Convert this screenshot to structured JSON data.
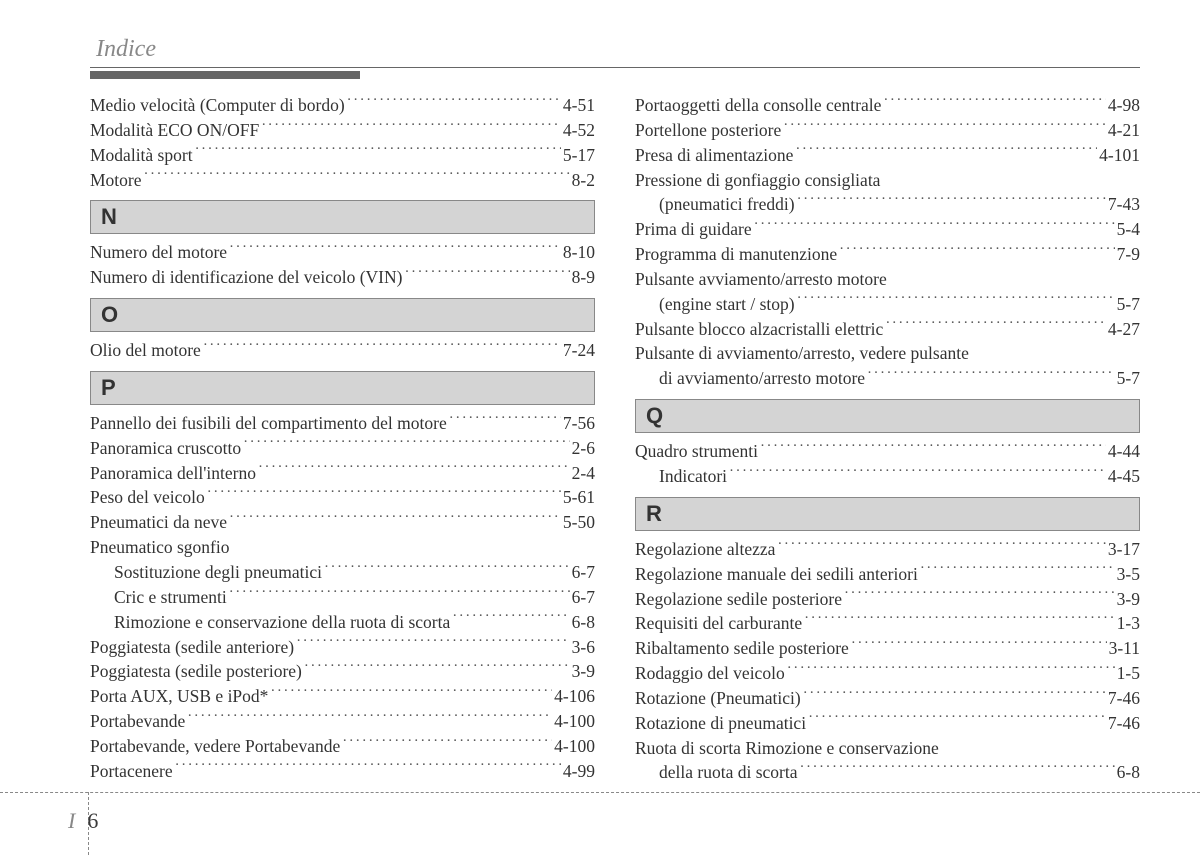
{
  "header": {
    "title": "Indice"
  },
  "footer": {
    "chapter": "I",
    "page": "6"
  },
  "columns": [
    {
      "items": [
        {
          "type": "entry",
          "label": "Medio velocità  (Computer di bordo)",
          "page": "4-51"
        },
        {
          "type": "entry",
          "label": "Modalità ECO ON/OFF",
          "page": "4-52"
        },
        {
          "type": "entry",
          "label": "Modalità sport",
          "page": "5-17"
        },
        {
          "type": "entry",
          "label": "Motore",
          "page": "8-2"
        },
        {
          "type": "letter",
          "letter": "N"
        },
        {
          "type": "entry",
          "label": "Numero del motore",
          "page": "8-10"
        },
        {
          "type": "entry",
          "label": "Numero di identificazione del veicolo (VIN)",
          "page": "8-9"
        },
        {
          "type": "letter",
          "letter": "O"
        },
        {
          "type": "entry",
          "label": "Olio del motore",
          "page": "7-24"
        },
        {
          "type": "letter",
          "letter": "P"
        },
        {
          "type": "entry",
          "label": "Pannello dei fusibili del compartimento del motore",
          "page": "7-56"
        },
        {
          "type": "entry",
          "label": "Panoramica cruscotto",
          "page": "2-6"
        },
        {
          "type": "entry",
          "label": "Panoramica dell'interno",
          "page": "2-4"
        },
        {
          "type": "entry",
          "label": "Peso del veicolo",
          "page": "5-61"
        },
        {
          "type": "entry",
          "label": "Pneumatici da neve",
          "page": "5-50"
        },
        {
          "type": "entry",
          "label": "Pneumatico sgonfio",
          "page": "",
          "noleader": true
        },
        {
          "type": "entry",
          "label": "Sostituzione degli pneumatici",
          "page": "6-7",
          "indent": true
        },
        {
          "type": "entry",
          "label": "Cric e strumenti",
          "page": "6-7",
          "indent": true
        },
        {
          "type": "entry",
          "label": "Rimozione e conservazione della ruota di scorta",
          "page": "6-8",
          "indent": true
        },
        {
          "type": "entry",
          "label": "Poggiatesta (sedile anteriore)",
          "page": "3-6"
        },
        {
          "type": "entry",
          "label": "Poggiatesta (sedile posteriore)",
          "page": "3-9"
        },
        {
          "type": "entry",
          "label": "Porta AUX, USB e iPod*",
          "page": "4-106"
        },
        {
          "type": "entry",
          "label": "Portabevande",
          "page": "4-100"
        },
        {
          "type": "entry",
          "label": "Portabevande, vedere Portabevande",
          "page": "4-100"
        },
        {
          "type": "entry",
          "label": "Portacenere",
          "page": "4-99"
        }
      ]
    },
    {
      "items": [
        {
          "type": "entry",
          "label": "Portaoggetti della consolle centrale",
          "page": "4-98"
        },
        {
          "type": "entry",
          "label": "Portellone posteriore",
          "page": "4-21"
        },
        {
          "type": "entry",
          "label": "Presa di alimentazione",
          "page": "4-101"
        },
        {
          "type": "entry",
          "label": "Pressione di gonfiaggio consigliata",
          "page": "",
          "noleader": true
        },
        {
          "type": "entry",
          "label": "(pneumatici freddi)",
          "page": "7-43",
          "indent": true
        },
        {
          "type": "entry",
          "label": "Prima di guidare",
          "page": "5-4"
        },
        {
          "type": "entry",
          "label": "Programma di manutenzione",
          "page": "7-9"
        },
        {
          "type": "entry",
          "label": "Pulsante avviamento/arresto motore",
          "page": "",
          "noleader": true
        },
        {
          "type": "entry",
          "label": "(engine start / stop)",
          "page": "5-7",
          "indent": true
        },
        {
          "type": "entry",
          "label": "Pulsante blocco alzacristalli elettric",
          "page": "4-27"
        },
        {
          "type": "entry",
          "label": "Pulsante di avviamento/arresto, vedere pulsante",
          "page": "",
          "noleader": true
        },
        {
          "type": "entry",
          "label": "di avviamento/arresto motore",
          "page": "5-7",
          "indent": true
        },
        {
          "type": "letter",
          "letter": "Q"
        },
        {
          "type": "entry",
          "label": "Quadro strumenti",
          "page": "4-44"
        },
        {
          "type": "entry",
          "label": "Indicatori",
          "page": "4-45",
          "indent": true
        },
        {
          "type": "letter",
          "letter": "R"
        },
        {
          "type": "entry",
          "label": "Regolazione altezza",
          "page": "3-17"
        },
        {
          "type": "entry",
          "label": "Regolazione manuale dei sedili anteriori",
          "page": "3-5"
        },
        {
          "type": "entry",
          "label": "Regolazione sedile posteriore",
          "page": "3-9"
        },
        {
          "type": "entry",
          "label": "Requisiti del carburante",
          "page": "1-3"
        },
        {
          "type": "entry",
          "label": "Ribaltamento sedile posteriore",
          "page": "3-11"
        },
        {
          "type": "entry",
          "label": "Rodaggio del veicolo",
          "page": "1-5"
        },
        {
          "type": "entry",
          "label": "Rotazione (Pneumatici)",
          "page": "7-46"
        },
        {
          "type": "entry",
          "label": "Rotazione di pneumatici",
          "page": "7-46"
        },
        {
          "type": "entry",
          "label": "Ruota di scorta Rimozione e conservazione",
          "page": "",
          "noleader": true
        },
        {
          "type": "entry",
          "label": "della ruota di scorta",
          "page": "6-8",
          "indent": true
        }
      ]
    }
  ]
}
